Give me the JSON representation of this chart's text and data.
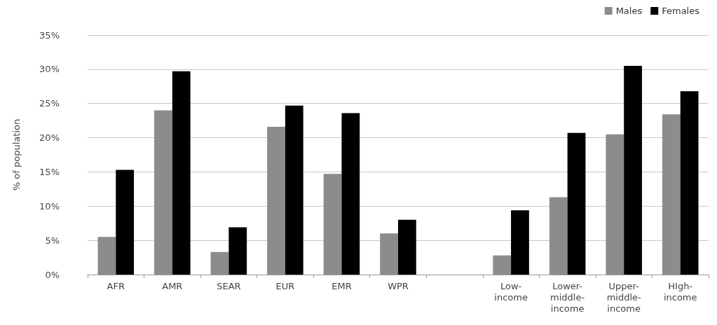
{
  "chart_data": {
    "type": "bar",
    "ylabel": "% of population",
    "categories": [
      "AFR",
      "AMR",
      "SEAR",
      "EUR",
      "EMR",
      "WPR",
      null,
      "Low-income",
      "Lower-middle-income",
      "Upper-middle-income",
      "HIgh-income"
    ],
    "series": [
      {
        "name": "Males",
        "color": "#8c8c8c",
        "values": [
          5.5,
          24.0,
          3.3,
          21.6,
          14.7,
          6.0,
          null,
          2.8,
          11.3,
          20.5,
          23.4
        ]
      },
      {
        "name": "Females",
        "color": "#000000",
        "values": [
          15.3,
          29.7,
          6.9,
          24.7,
          23.6,
          8.0,
          null,
          9.4,
          20.7,
          30.5,
          26.8
        ]
      }
    ],
    "ylim": [
      0,
      35
    ],
    "yticks": [
      {
        "value": 0,
        "label": "0%"
      },
      {
        "value": 5,
        "label": "5%"
      },
      {
        "value": 10,
        "label": "10%"
      },
      {
        "value": 15,
        "label": "15%"
      },
      {
        "value": 20,
        "label": "20%"
      },
      {
        "value": 25,
        "label": "25%"
      },
      {
        "value": 30,
        "label": "30%"
      },
      {
        "value": 35,
        "label": "35%"
      }
    ],
    "grid": "y",
    "legend": "top right"
  }
}
